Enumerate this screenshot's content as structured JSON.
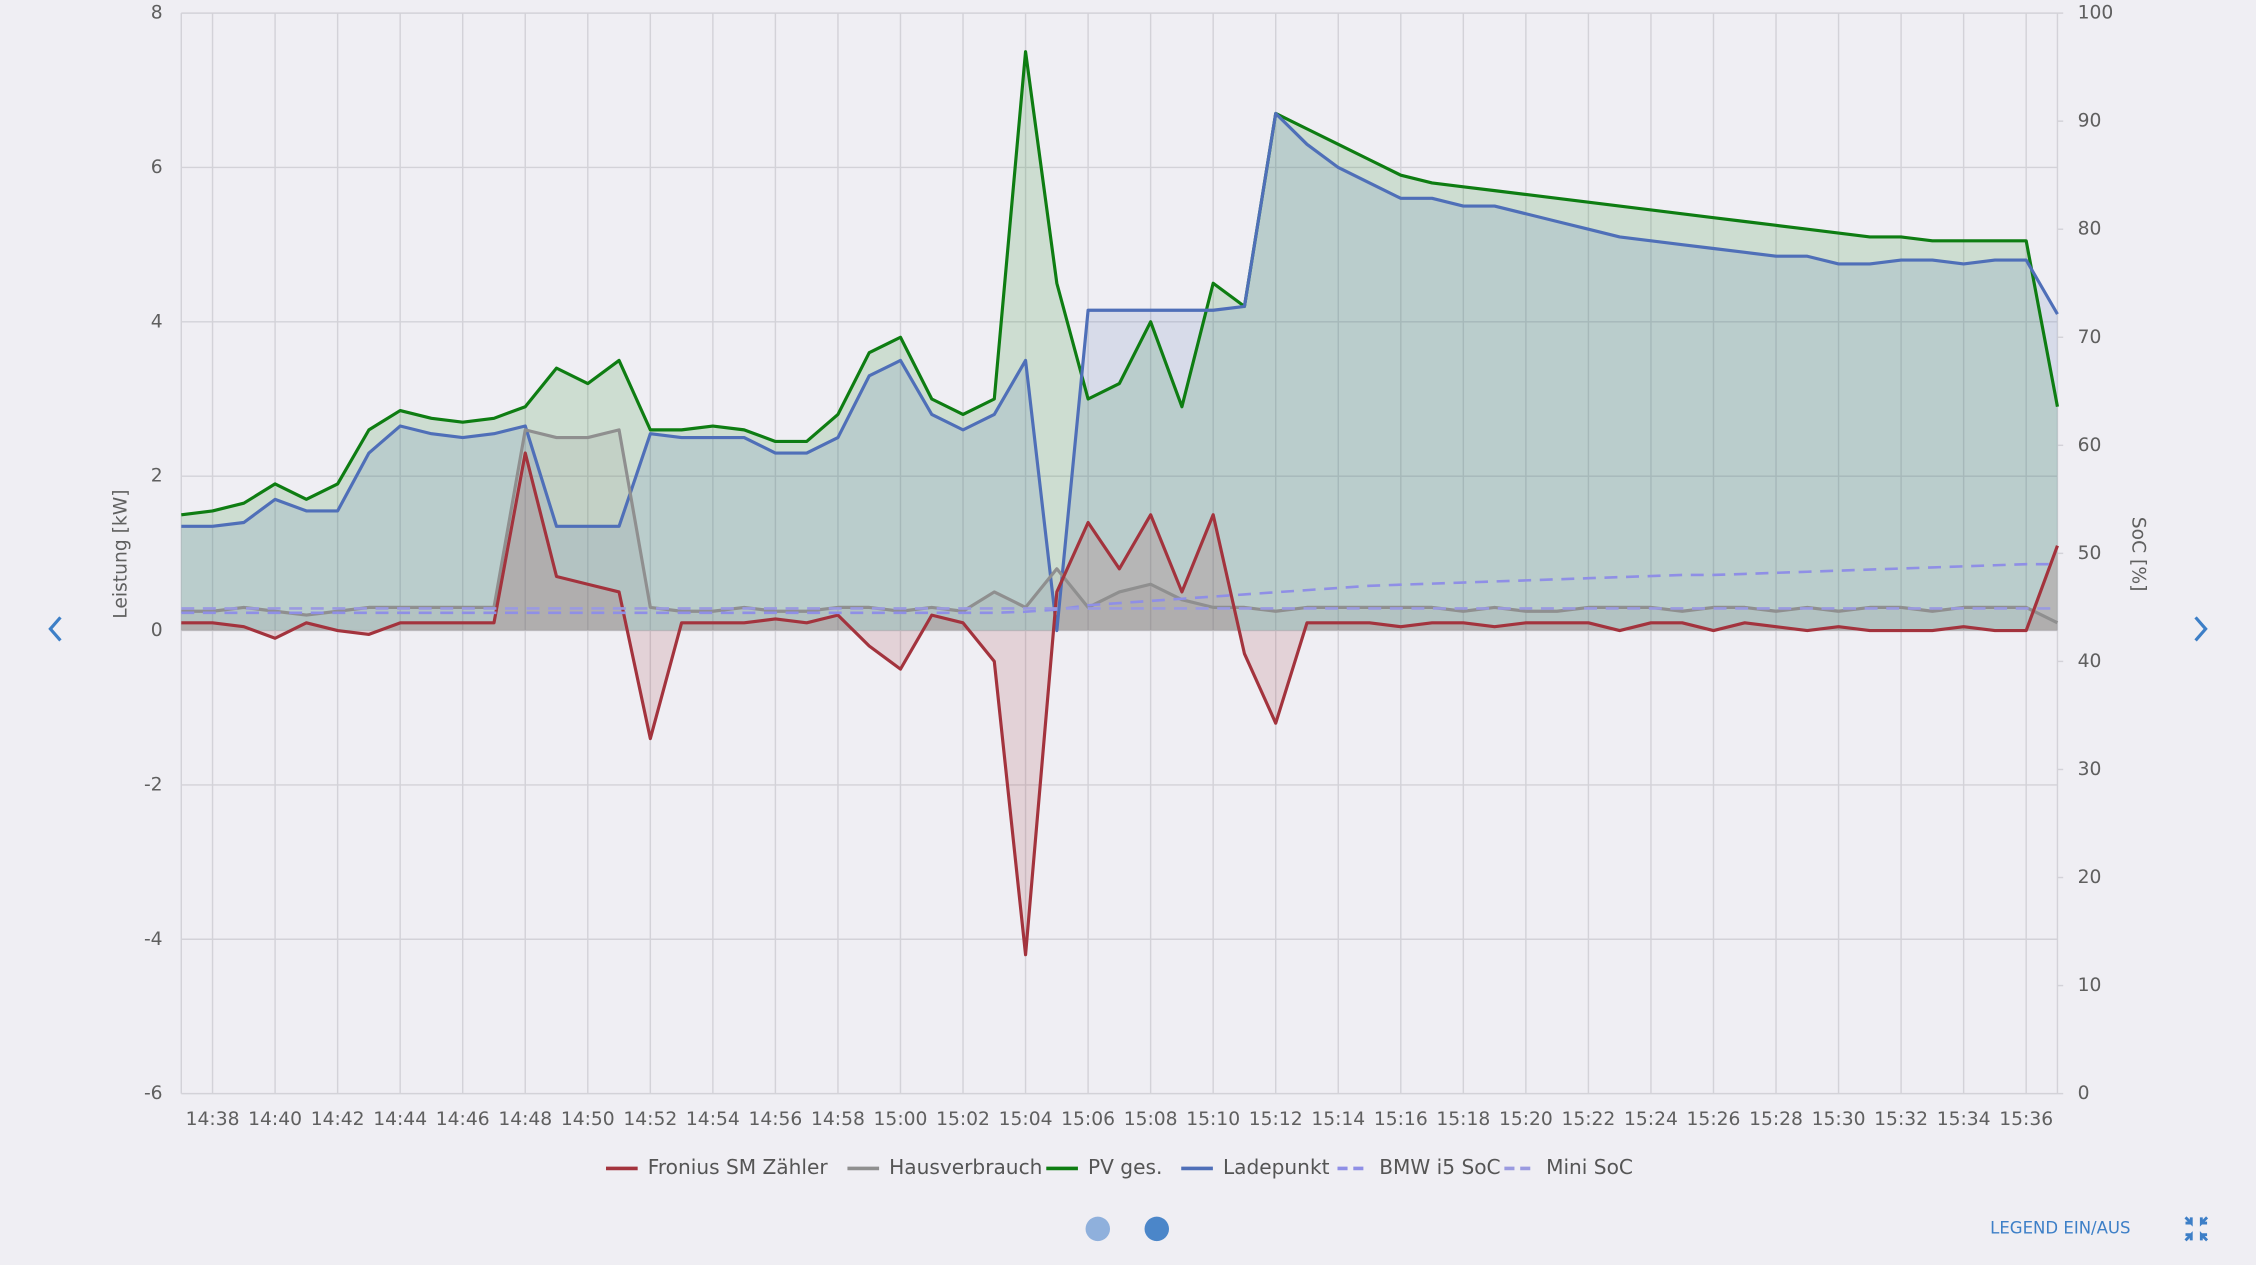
{
  "chart_data": {
    "type": "line",
    "ylabel": "Leistung [kW]",
    "y2label": "SoC [%]",
    "categories": [
      null,
      "14:38",
      null,
      "14:40",
      null,
      "14:42",
      null,
      "14:44",
      null,
      "14:46",
      null,
      "14:48",
      null,
      "14:50",
      null,
      "14:52",
      null,
      "14:54",
      null,
      "14:56",
      null,
      "14:58",
      null,
      "15:00",
      null,
      "15:02",
      null,
      "15:04",
      null,
      "15:06",
      null,
      "15:08",
      null,
      "15:10",
      null,
      "15:12",
      null,
      "15:14",
      null,
      "15:16",
      null,
      "15:18",
      null,
      "15:20",
      null,
      "15:22",
      null,
      "15:24",
      null,
      "15:26",
      null,
      "15:28",
      null,
      "15:30",
      null,
      "15:32",
      null,
      "15:34",
      null,
      "15:36",
      null
    ],
    "ylim": [
      -6,
      8
    ],
    "yticks": [
      -6,
      -4,
      -2,
      0,
      2,
      4,
      6,
      8
    ],
    "y2lim": [
      0,
      100
    ],
    "y2ticks": [
      0,
      10,
      20,
      30,
      40,
      50,
      60,
      70,
      80,
      90,
      100
    ],
    "grid": true,
    "series": [
      {
        "name": "Fronius SM Zähler",
        "color": "#a3333d",
        "fill": true,
        "dashed": false,
        "values": [
          0.1,
          0.1,
          0.05,
          -0.1,
          0.1,
          0.0,
          -0.05,
          0.1,
          0.1,
          0.1,
          0.1,
          2.3,
          0.7,
          0.6,
          0.5,
          -1.4,
          0.1,
          0.1,
          0.1,
          0.15,
          0.1,
          0.2,
          -0.2,
          -0.5,
          0.2,
          0.1,
          -0.4,
          -4.2,
          0.5,
          1.4,
          0.8,
          1.5,
          0.5,
          1.5,
          -0.3,
          -1.2,
          0.1,
          0.1,
          0.1,
          0.05,
          0.1,
          0.1,
          0.05,
          0.1,
          0.1,
          0.1,
          0.0,
          0.1,
          0.1,
          0.0,
          0.1,
          0.05,
          0.0,
          0.05,
          0.0,
          0.0,
          0.0,
          0.05,
          0.0,
          0.0,
          1.1
        ]
      },
      {
        "name": "Hausverbrauch",
        "color": "#8f8f8f",
        "fill": true,
        "dashed": false,
        "values": [
          0.25,
          0.25,
          0.3,
          0.25,
          0.2,
          0.25,
          0.3,
          0.3,
          0.3,
          0.3,
          0.3,
          2.6,
          2.5,
          2.5,
          2.6,
          0.3,
          0.25,
          0.25,
          0.3,
          0.25,
          0.25,
          0.3,
          0.3,
          0.25,
          0.3,
          0.25,
          0.5,
          0.3,
          0.8,
          0.3,
          0.5,
          0.6,
          0.4,
          0.3,
          0.3,
          0.25,
          0.3,
          0.3,
          0.3,
          0.3,
          0.3,
          0.25,
          0.3,
          0.25,
          0.25,
          0.3,
          0.3,
          0.3,
          0.25,
          0.3,
          0.3,
          0.25,
          0.3,
          0.25,
          0.3,
          0.3,
          0.25,
          0.3,
          0.3,
          0.3,
          0.1
        ]
      },
      {
        "name": "PV ges.",
        "color": "#0e7d12",
        "fill": true,
        "dashed": false,
        "values": [
          1.5,
          1.55,
          1.65,
          1.9,
          1.7,
          1.9,
          2.6,
          2.85,
          2.75,
          2.7,
          2.75,
          2.9,
          3.4,
          3.2,
          3.5,
          2.6,
          2.6,
          2.65,
          2.6,
          2.45,
          2.45,
          2.8,
          3.6,
          3.8,
          3.0,
          2.8,
          3.0,
          7.5,
          4.5,
          3.0,
          3.2,
          4.0,
          2.9,
          4.5,
          4.2,
          6.7,
          6.5,
          6.3,
          6.1,
          5.9,
          5.8,
          5.75,
          5.7,
          5.65,
          5.6,
          5.55,
          5.5,
          5.45,
          5.4,
          5.35,
          5.3,
          5.25,
          5.2,
          5.15,
          5.1,
          5.1,
          5.05,
          5.05,
          5.05,
          5.05,
          2.9
        ]
      },
      {
        "name": "Ladepunkt",
        "color": "#4f6fb8",
        "fill": true,
        "dashed": false,
        "values": [
          1.35,
          1.35,
          1.4,
          1.7,
          1.55,
          1.55,
          2.3,
          2.65,
          2.55,
          2.5,
          2.55,
          2.65,
          1.35,
          1.35,
          1.35,
          2.55,
          2.5,
          2.5,
          2.5,
          2.3,
          2.3,
          2.5,
          3.3,
          3.5,
          2.8,
          2.6,
          2.8,
          3.5,
          0.0,
          4.15,
          4.15,
          4.15,
          4.15,
          4.15,
          4.2,
          6.7,
          6.3,
          6.0,
          5.8,
          5.6,
          5.6,
          5.5,
          5.5,
          5.4,
          5.3,
          5.2,
          5.1,
          5.05,
          5.0,
          4.95,
          4.9,
          4.85,
          4.85,
          4.75,
          4.75,
          4.8,
          4.8,
          4.75,
          4.8,
          4.8,
          4.1
        ]
      },
      {
        "name": "BMW i5 SoC",
        "color": "#8f8fe6",
        "fill": false,
        "dashed": true,
        "axis": "y2",
        "values": [
          44.5,
          44.5,
          44.5,
          44.5,
          44.5,
          44.5,
          44.5,
          44.5,
          44.5,
          44.5,
          44.5,
          44.5,
          44.5,
          44.5,
          44.5,
          44.5,
          44.5,
          44.5,
          44.5,
          44.5,
          44.5,
          44.5,
          44.5,
          44.5,
          44.5,
          44.5,
          44.5,
          44.6,
          44.8,
          45.2,
          45.4,
          45.6,
          45.8,
          46.0,
          46.2,
          46.4,
          46.6,
          46.8,
          47.0,
          47.1,
          47.2,
          47.3,
          47.4,
          47.5,
          47.6,
          47.7,
          47.8,
          47.9,
          48.0,
          48.0,
          48.1,
          48.2,
          48.3,
          48.4,
          48.5,
          48.6,
          48.7,
          48.8,
          48.9,
          49.0,
          49.0
        ]
      },
      {
        "name": "Mini SoC",
        "color": "#9a9ae0",
        "fill": false,
        "dashed": true,
        "axis": "y2",
        "values": [
          44.9,
          44.9,
          44.9,
          44.9,
          44.9,
          44.9,
          44.9,
          44.9,
          44.9,
          44.9,
          44.9,
          44.9,
          44.9,
          44.9,
          44.9,
          44.9,
          44.9,
          44.9,
          44.9,
          44.9,
          44.9,
          44.9,
          44.9,
          44.9,
          44.9,
          44.9,
          44.9,
          44.9,
          44.9,
          44.9,
          44.9,
          44.9,
          44.9,
          44.9,
          44.9,
          44.9,
          44.9,
          44.9,
          44.9,
          44.9,
          44.9,
          44.9,
          44.9,
          44.9,
          44.9,
          44.9,
          44.9,
          44.9,
          44.9,
          44.9,
          44.9,
          44.9,
          44.9,
          44.9,
          44.9,
          44.9,
          44.9,
          44.9,
          44.9,
          44.9,
          44.9
        ]
      }
    ]
  },
  "ui": {
    "legend_toggle": "LEGEND EIN/AUS"
  }
}
